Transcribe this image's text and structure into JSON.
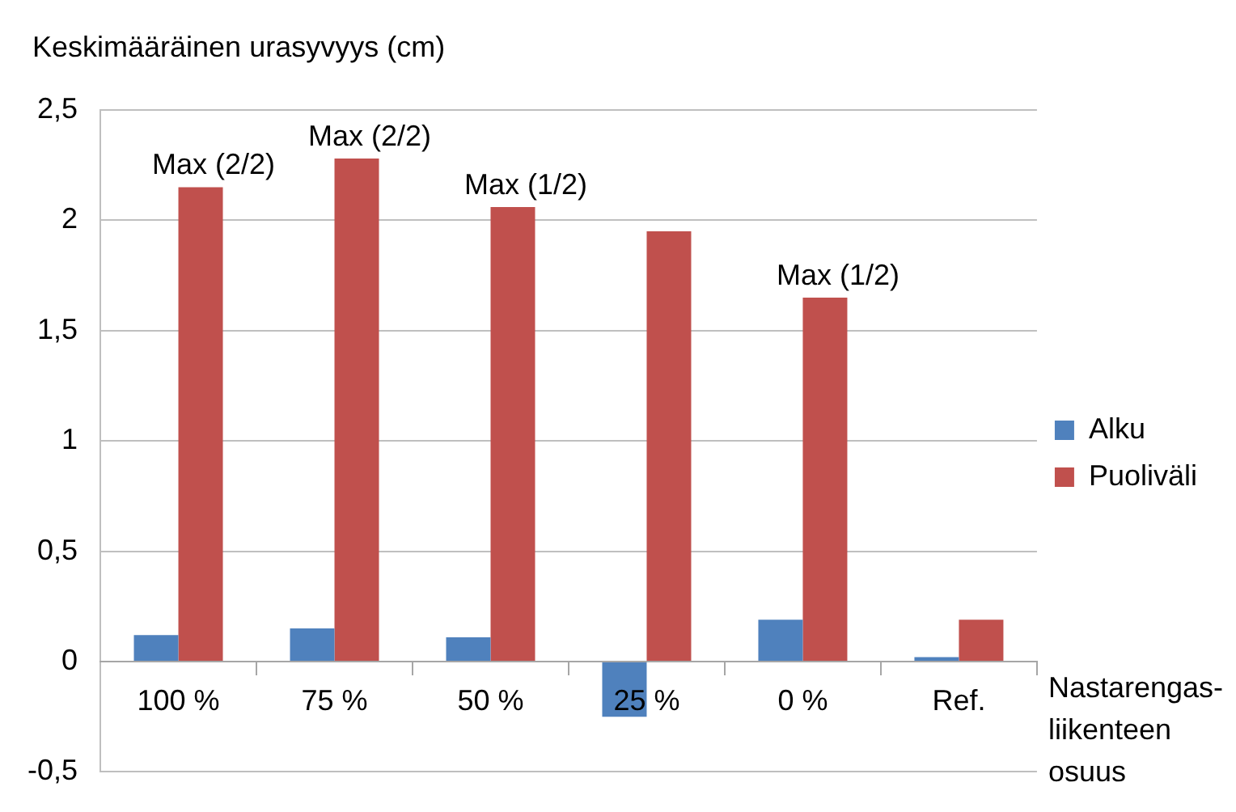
{
  "chart_data": {
    "type": "bar",
    "ylabel": "Keskimääräinen urasyvyys (cm)",
    "xlabel": "Nastarengas-\nliikenteen\nosuus",
    "categories": [
      "100 %",
      "75 %",
      "50 %",
      "25 %",
      "0 %",
      "Ref."
    ],
    "series": [
      {
        "name": "Alku",
        "color": "#4f81bd",
        "values": [
          0.12,
          0.15,
          0.11,
          -0.25,
          0.19,
          0.02
        ]
      },
      {
        "name": "Puoliväli",
        "color": "#c0504d",
        "values": [
          2.15,
          2.28,
          2.06,
          1.95,
          1.65,
          0.19
        ]
      }
    ],
    "ylim": [
      -0.5,
      2.5
    ],
    "yticks": [
      {
        "value": -0.5,
        "label": "-0,5"
      },
      0,
      {
        "value": 0.5,
        "label": "0,5"
      },
      1,
      {
        "value": 1.5,
        "label": "1,5"
      },
      2,
      {
        "value": 2.5,
        "label": "2,5"
      }
    ],
    "annotations": [
      {
        "text": "Max (2/2)",
        "x": "100 %",
        "y": 2.15
      },
      {
        "text": "Max (2/2)",
        "x": "75 %",
        "y": 2.28
      },
      {
        "text": "Max (1/2)",
        "x": "50 %",
        "y": 2.06
      },
      {
        "text": "Max (1/2)",
        "x": "0 %",
        "y": 1.65
      }
    ],
    "grid": "y",
    "legend": "right"
  }
}
